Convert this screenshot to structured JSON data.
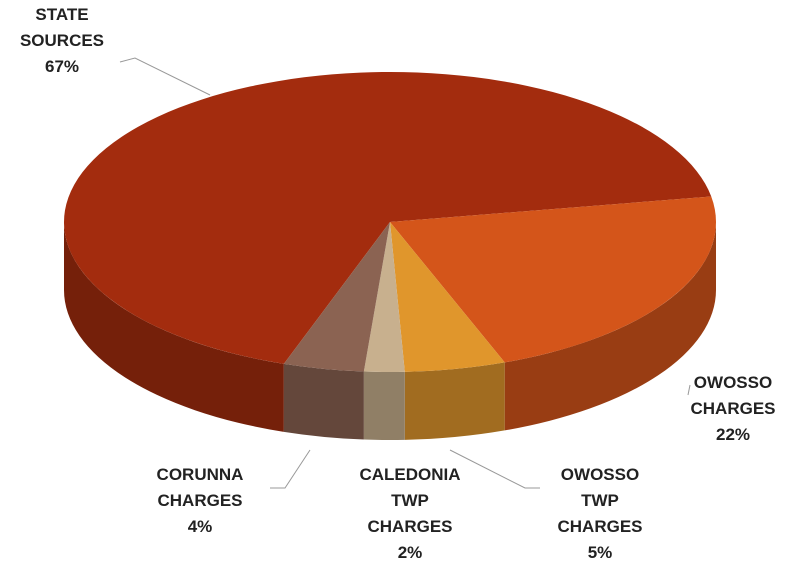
{
  "chart_data": {
    "type": "pie",
    "categories": [
      "STATE SOURCES",
      "OWOSSO CHARGES",
      "OWOSSO TWP CHARGES",
      "CALEDONIA TWP CHARGES",
      "CORUNNA CHARGES"
    ],
    "values": [
      67,
      22,
      5,
      2,
      4
    ],
    "value_labels": [
      "67%",
      "22%",
      "5%",
      "2%",
      "4%"
    ],
    "colors": [
      "#a32c0e",
      "#d4551a",
      "#e0962c",
      "#c8b08e",
      "#8b6352"
    ]
  }
}
